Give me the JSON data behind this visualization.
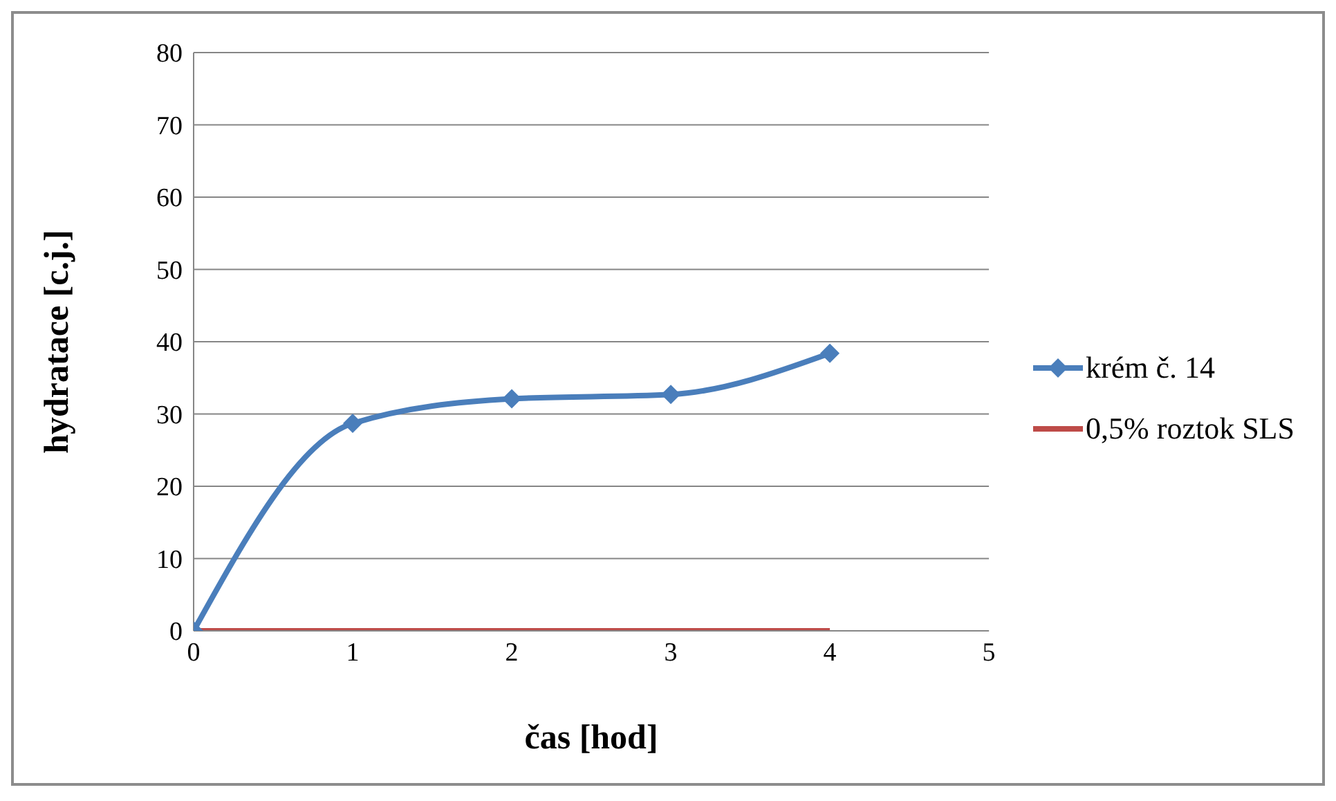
{
  "chart_data": {
    "type": "line",
    "xlabel": "čas [hod]",
    "ylabel": "hydratace [c.j.]",
    "x": [
      0,
      1,
      2,
      3,
      4
    ],
    "series": [
      {
        "name": "krém č. 14",
        "color": "#4a7ebb",
        "values": [
          0,
          28.7,
          32.1,
          32.7,
          38.4
        ],
        "marker": "diamond"
      },
      {
        "name": "0,5% roztok SLS",
        "color": "#be4b48",
        "values": [
          0,
          0,
          0,
          0,
          0
        ],
        "marker": "none"
      }
    ],
    "xlim": [
      0,
      5
    ],
    "xticks": [
      0,
      1,
      2,
      3,
      4,
      5
    ],
    "ylim": [
      0,
      80
    ],
    "yticks": [
      0,
      10,
      20,
      30,
      40,
      50,
      60,
      70,
      80
    ],
    "grid": "y",
    "legend": "right",
    "line_style": "solid"
  }
}
